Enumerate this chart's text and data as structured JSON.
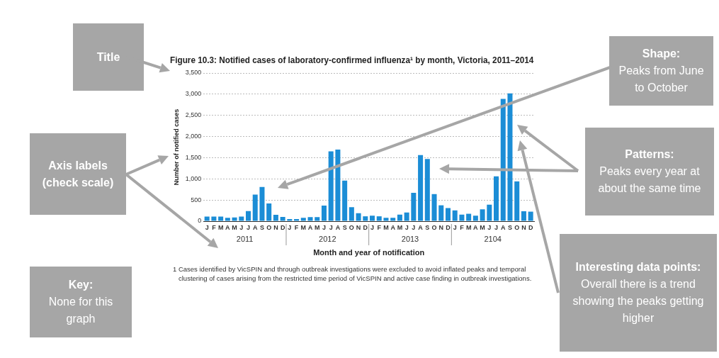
{
  "chart_data": {
    "type": "bar",
    "title": "Figure 10.3: Notified cases of laboratory-confirmed influenza¹ by month, Victoria, 2011–2014",
    "xlabel": "Month and year of notification",
    "ylabel": "Number of notified cases",
    "categories": [
      "J",
      "F",
      "M",
      "A",
      "M",
      "J",
      "J",
      "A",
      "S",
      "O",
      "N",
      "D",
      "J",
      "F",
      "M",
      "A",
      "M",
      "J",
      "J",
      "A",
      "S",
      "O",
      "N",
      "D",
      "J",
      "F",
      "M",
      "A",
      "M",
      "J",
      "J",
      "A",
      "S",
      "O",
      "N",
      "D",
      "J",
      "F",
      "M",
      "A",
      "M",
      "J",
      "J",
      "A",
      "S",
      "O",
      "N",
      "D"
    ],
    "values": [
      110,
      110,
      110,
      80,
      90,
      110,
      240,
      630,
      810,
      420,
      150,
      100,
      50,
      50,
      80,
      95,
      95,
      370,
      1650,
      1690,
      960,
      330,
      190,
      115,
      130,
      115,
      80,
      80,
      155,
      205,
      670,
      1560,
      1470,
      640,
      375,
      310,
      255,
      155,
      175,
      130,
      280,
      390,
      1060,
      2890,
      3020,
      940,
      235,
      225
    ],
    "color": "#1b8dd6",
    "ylim": [
      0,
      3500
    ],
    "yticks": [
      {
        "value": 0,
        "label": "0"
      },
      {
        "value": 500,
        "label": "500"
      },
      {
        "value": 1000,
        "label": "1,000"
      },
      {
        "value": 1500,
        "label": "1,500"
      },
      {
        "value": 2000,
        "label": "2,000"
      },
      {
        "value": 2500,
        "label": "2,500"
      },
      {
        "value": 3000,
        "label": "3,000"
      },
      {
        "value": 3500,
        "label": "3,500"
      }
    ],
    "grid": "y",
    "annotations": [
      "2011",
      "2012",
      "2013",
      "2104",
      "1  Cases identified by VicSPIN and through outbreak investigations were excluded to avoid inflated peaks and temporal clustering of cases arising from the restricted time period of VicSPIN and active case finding in outbreak investigations.",
      "Title",
      "Axis labels\n(check scale)",
      "Key:\nNone for this graph",
      "Shape:\nPeaks from June to October",
      "Patterns:\nPeaks every year at about the same time",
      "Interesting data points:\nOverall there is a trend showing the peaks getting higher"
    ]
  }
}
